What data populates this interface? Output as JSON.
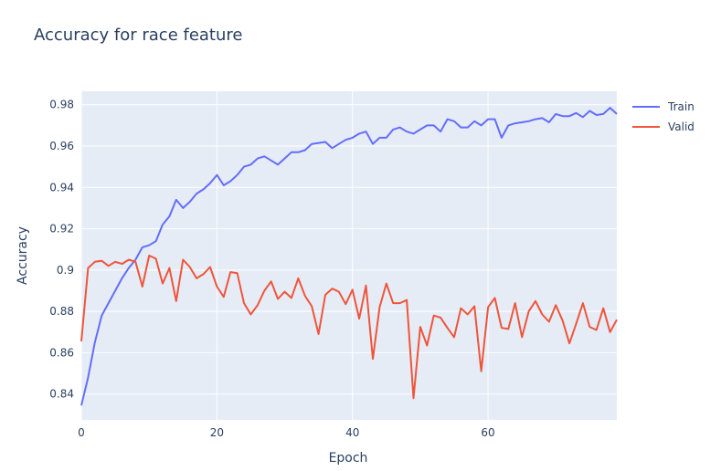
{
  "chart_data": {
    "type": "line",
    "title": "Accuracy for race feature",
    "xlabel": "Epoch",
    "ylabel": "Accuracy",
    "xlim": [
      0,
      79
    ],
    "ylim": [
      0.8275,
      0.9865
    ],
    "x_ticks": [
      0,
      20,
      40,
      60
    ],
    "y_ticks": [
      0.84,
      0.86,
      0.88,
      0.9,
      0.92,
      0.94,
      0.96,
      0.98
    ],
    "y_tick_labels": [
      "0.84",
      "0.86",
      "0.88",
      "0.9",
      "0.92",
      "0.94",
      "0.96",
      "0.98"
    ],
    "grid": true,
    "legend_position": "top-right",
    "background": "#e5ecf6",
    "x": [
      0,
      1,
      2,
      3,
      4,
      5,
      6,
      7,
      8,
      9,
      10,
      11,
      12,
      13,
      14,
      15,
      16,
      17,
      18,
      19,
      20,
      21,
      22,
      23,
      24,
      25,
      26,
      27,
      28,
      29,
      30,
      31,
      32,
      33,
      34,
      35,
      36,
      37,
      38,
      39,
      40,
      41,
      42,
      43,
      44,
      45,
      46,
      47,
      48,
      49,
      50,
      51,
      52,
      53,
      54,
      55,
      56,
      57,
      58,
      59,
      60,
      61,
      62,
      63,
      64,
      65,
      66,
      67,
      68,
      69,
      70,
      71,
      72,
      73,
      74,
      75,
      76,
      77,
      78,
      79
    ],
    "series": [
      {
        "name": "Train",
        "color": "#636efa",
        "values": [
          0.8345,
          0.848,
          0.865,
          0.878,
          0.884,
          0.89,
          0.896,
          0.901,
          0.905,
          0.911,
          0.912,
          0.914,
          0.922,
          0.926,
          0.934,
          0.93,
          0.933,
          0.937,
          0.939,
          0.942,
          0.946,
          0.941,
          0.943,
          0.946,
          0.95,
          0.951,
          0.954,
          0.955,
          0.953,
          0.951,
          0.954,
          0.957,
          0.957,
          0.958,
          0.961,
          0.9615,
          0.962,
          0.959,
          0.961,
          0.963,
          0.964,
          0.966,
          0.967,
          0.961,
          0.964,
          0.964,
          0.968,
          0.969,
          0.967,
          0.966,
          0.968,
          0.97,
          0.97,
          0.967,
          0.973,
          0.972,
          0.969,
          0.969,
          0.972,
          0.97,
          0.973,
          0.973,
          0.964,
          0.97,
          0.971,
          0.9715,
          0.972,
          0.973,
          0.9735,
          0.9715,
          0.9755,
          0.9745,
          0.9745,
          0.976,
          0.974,
          0.977,
          0.975,
          0.9755,
          0.9785,
          0.9755
        ]
      },
      {
        "name": "Valid",
        "color": "#ef553b",
        "values": [
          0.8655,
          0.901,
          0.904,
          0.9045,
          0.902,
          0.904,
          0.903,
          0.905,
          0.904,
          0.892,
          0.907,
          0.9055,
          0.8935,
          0.901,
          0.885,
          0.905,
          0.9015,
          0.896,
          0.898,
          0.9015,
          0.892,
          0.887,
          0.899,
          0.8985,
          0.884,
          0.8785,
          0.883,
          0.89,
          0.8945,
          0.886,
          0.8895,
          0.8865,
          0.896,
          0.8875,
          0.8825,
          0.869,
          0.888,
          0.891,
          0.8895,
          0.8835,
          0.8905,
          0.8765,
          0.8925,
          0.857,
          0.882,
          0.8935,
          0.884,
          0.884,
          0.8855,
          0.838,
          0.8725,
          0.8635,
          0.878,
          0.877,
          0.872,
          0.8675,
          0.8815,
          0.8785,
          0.8825,
          0.851,
          0.882,
          0.8865,
          0.872,
          0.8715,
          0.884,
          0.8675,
          0.88,
          0.885,
          0.8785,
          0.875,
          0.883,
          0.8755,
          0.8645,
          0.874,
          0.884,
          0.8725,
          0.871,
          0.8815,
          0.87,
          0.876
        ]
      }
    ]
  }
}
